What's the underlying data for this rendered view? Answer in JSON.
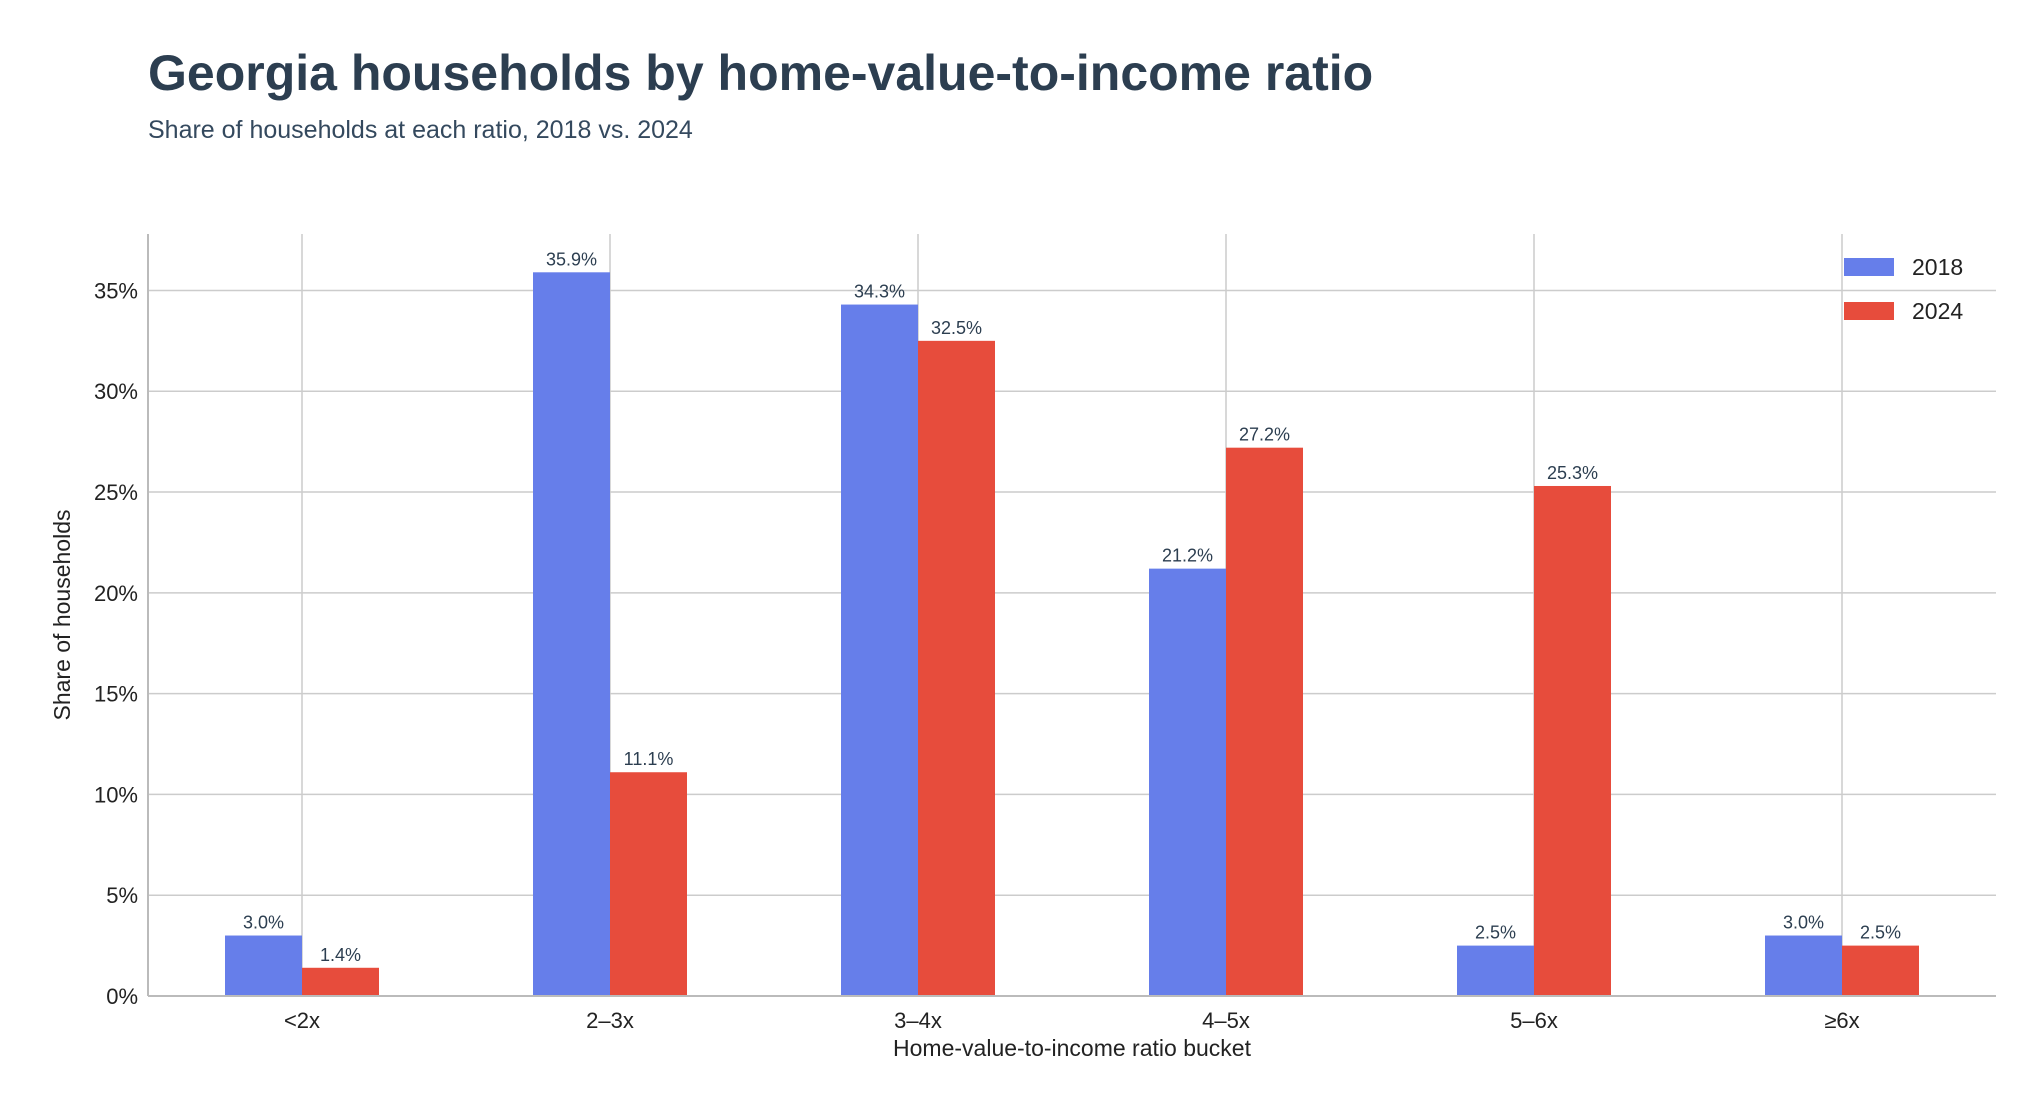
{
  "chart_data": {
    "type": "bar",
    "title": "Georgia households by home-value-to-income ratio",
    "subtitle": "Share of households at each ratio, 2018 vs. 2024",
    "xlabel": "Home-value-to-income ratio bucket",
    "ylabel": "Share of households",
    "categories": [
      "<2x",
      "2–3x",
      "3–4x",
      "4–5x",
      "5–6x",
      "≥6x"
    ],
    "series": [
      {
        "name": "2018",
        "color": "#667eea",
        "values": [
          3.0,
          35.9,
          34.3,
          21.2,
          2.5,
          3.0
        ],
        "labels": [
          "3.0%",
          "35.9%",
          "34.3%",
          "21.2%",
          "2.5%",
          "3.0%"
        ]
      },
      {
        "name": "2024",
        "color": "#e74c3c",
        "values": [
          1.4,
          11.1,
          32.5,
          27.2,
          25.3,
          2.5
        ],
        "labels": [
          "1.4%",
          "11.1%",
          "32.5%",
          "27.2%",
          "25.3%",
          "2.5%"
        ]
      }
    ],
    "yticks": [
      0,
      5,
      10,
      15,
      20,
      25,
      30,
      35
    ],
    "ytick_labels": [
      "0%",
      "5%",
      "10%",
      "15%",
      "20%",
      "25%",
      "30%",
      "35%"
    ],
    "ylim": [
      0,
      37.8
    ],
    "grid": true,
    "legend_position": "top-right"
  }
}
